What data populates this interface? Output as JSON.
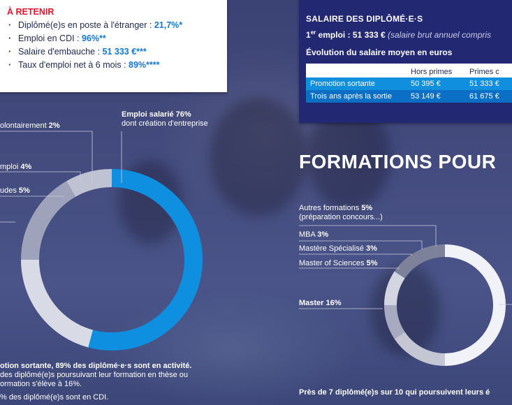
{
  "retenir": {
    "title": "À RETENIR",
    "items": [
      {
        "label": "Diplômé(e)s en poste à l'étranger : ",
        "value": "21,7%*"
      },
      {
        "label": "Emploi en CDI : ",
        "value": "96%**"
      },
      {
        "label": "Salaire d'embauche : ",
        "value": "51 333 €***"
      },
      {
        "label": "Taux d'emploi net à 6 mois : ",
        "value": "89%****"
      }
    ]
  },
  "salaire": {
    "title": "SALAIRE DES DIPLÔMÉ·E·S",
    "first_label": "1",
    "first_sup": "er",
    "first_text": " emploi : 51 333 €",
    "first_note": " (salaire brut annuel compris",
    "evolution_title": "Évolution du salaire moyen en euros",
    "table": {
      "headers": [
        "",
        "Hors primes",
        "Primes c"
      ],
      "rows": [
        [
          "Promotion sortante",
          "50 395 €",
          "51 333 €"
        ],
        [
          "Trois ans après la sortie",
          "53 149 €",
          "61 675 €"
        ]
      ]
    }
  },
  "formations_title": "FORMATIONS POUR",
  "chart_data": [
    {
      "type": "pie",
      "segments": [
        {
          "label": "Emploi salarié",
          "value": 76,
          "sublabel": "dont création d'entreprise"
        },
        {
          "label": "...volontairement",
          "value": 2
        },
        {
          "label": "...mploi",
          "value": 4
        },
        {
          "label": "...udes",
          "value": 5
        },
        {
          "label": "",
          "value": 13
        }
      ],
      "labels_text": {
        "emploi": "Emploi salarié ",
        "emploi_val": "76%",
        "emploi_sub": "dont création d'entreprise",
        "volont": "olontairement ",
        "volont_val": "2%",
        "mploi": "mploi ",
        "mploi_val": "4%",
        "udes": "udes ",
        "udes_val": "5%"
      },
      "colors": {
        "main": "#f1f2f7",
        "blue": "#0e8fe0",
        "gray": "#c6c8d6",
        "darkgray": "#8a8ea8"
      }
    },
    {
      "type": "pie",
      "segments": [
        {
          "label": "Autres formations",
          "value": 5,
          "sublabel": "(préparation concours...)"
        },
        {
          "label": "MBA",
          "value": 3
        },
        {
          "label": "Mastère Spécialisé",
          "value": 3
        },
        {
          "label": "Master of Sciences",
          "value": 5
        },
        {
          "label": "Master",
          "value": 16
        },
        {
          "label": "",
          "value": 68
        }
      ],
      "labels_text": {
        "autres": "Autres formations ",
        "autres_val": "5%",
        "autres_sub": "(préparation concours...)",
        "mba": "MBA ",
        "mba_val": "3%",
        "ms": "Mastère Spécialisé ",
        "ms_val": "3%",
        "msc": "Master of Sciences ",
        "msc_val": "5%",
        "master": "Master 16%"
      }
    }
  ],
  "bottom_left": {
    "line1": "otion sortante, 89% des diplômé·e·s sont en activité.",
    "line2": "des diplômé(e)s poursuivant leur formation en thèse ou",
    "line3": "ormation s'élève à 16%.",
    "line4": "% des diplômé(e)s sont en CDI."
  },
  "bottom_right": {
    "line1": "Près de 7 diplômé(e)s sur 10 qui poursuivent leurs é"
  }
}
